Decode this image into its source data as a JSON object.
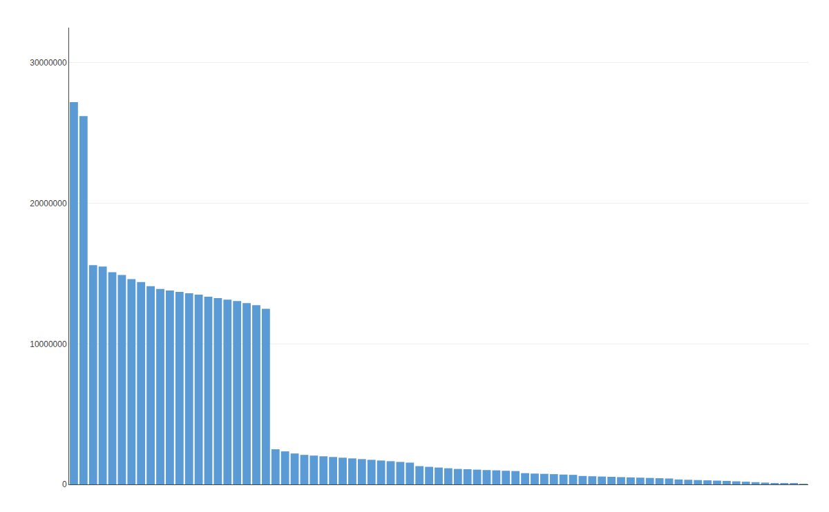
{
  "chart_data": {
    "type": "bar",
    "categories": [
      null,
      null,
      null,
      null,
      null,
      null,
      null,
      null,
      null,
      null,
      null,
      null,
      null,
      null,
      null,
      null,
      null,
      null,
      null,
      null,
      null,
      null,
      null,
      null,
      null,
      null,
      null,
      null,
      null,
      null,
      null,
      null,
      null,
      null,
      null,
      null,
      null,
      null,
      null,
      null,
      null,
      null,
      null,
      null,
      null,
      null,
      null,
      null,
      null,
      null,
      null,
      null,
      null,
      null,
      null,
      null,
      null,
      null,
      null,
      null,
      null,
      null,
      null,
      null,
      null,
      null,
      null,
      null,
      null,
      null,
      null,
      null,
      null,
      null,
      null,
      null,
      null
    ],
    "values": [
      27200000,
      26200000,
      15600000,
      15500000,
      15100000,
      14900000,
      14600000,
      14400000,
      14100000,
      13900000,
      13800000,
      13700000,
      13600000,
      13500000,
      13350000,
      13250000,
      13150000,
      13050000,
      12900000,
      12750000,
      12500000,
      2500000,
      2350000,
      2200000,
      2100000,
      2050000,
      2000000,
      1950000,
      1900000,
      1850000,
      1800000,
      1750000,
      1700000,
      1650000,
      1600000,
      1550000,
      1300000,
      1250000,
      1200000,
      1150000,
      1100000,
      1080000,
      1050000,
      1020000,
      1000000,
      970000,
      950000,
      800000,
      770000,
      750000,
      730000,
      700000,
      680000,
      600000,
      580000,
      560000,
      540000,
      520000,
      500000,
      480000,
      460000,
      440000,
      420000,
      350000,
      330000,
      310000,
      290000,
      270000,
      250000,
      220000,
      190000,
      160000,
      130000,
      100000,
      70000,
      50000,
      30000
    ],
    "color": "#5B9BD5",
    "ylim": [
      0,
      32500000
    ],
    "yticks": [
      0,
      10000000,
      20000000,
      30000000
    ],
    "grid": true,
    "tick_labels": "y"
  }
}
